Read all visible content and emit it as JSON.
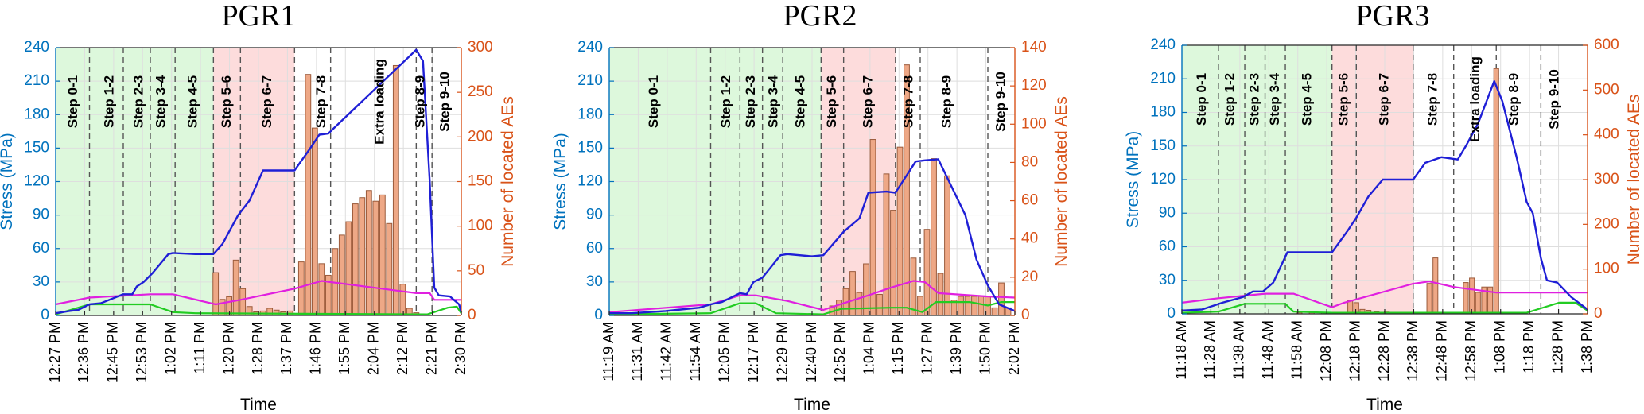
{
  "colors": {
    "stress": "#1F1FD6",
    "magenta": "#E020E0",
    "green": "#22CC22",
    "bars_fill": "#EEA886",
    "bars_edge": "#9A5A3A",
    "axis_left": "#0072BD",
    "axis_right": "#D95319",
    "shade_green": "#DDF8DC",
    "shade_red": "#FDDCDC"
  },
  "chart_data": [
    {
      "type": "bar",
      "title": "PGR1",
      "xlabel": "Time",
      "ylabel": "Stress (MPa)",
      "y2label": "Number of located AEs",
      "xlim": [
        0,
        18
      ],
      "ylim": [
        0,
        240
      ],
      "y2lim": [
        0,
        300
      ],
      "yticks": [
        0,
        30,
        60,
        90,
        120,
        150,
        180,
        210,
        240
      ],
      "y2ticks": [
        0,
        50,
        100,
        150,
        200,
        250,
        300
      ],
      "xticklabels": [
        "12:27 PM",
        "12:36 PM",
        "12:45 PM",
        "12:53 PM",
        "1:02 PM",
        "1:11 PM",
        "1:20 PM",
        "1:28 PM",
        "1:37 PM",
        "1:46 PM",
        "1:55 PM",
        "2:04 PM",
        "2:12 PM",
        "2:21 PM",
        "2:30 PM"
      ],
      "steps": [
        {
          "label": "Step 0-1",
          "x": 0.8
        },
        {
          "label": "Step 1-2",
          "x": 2.4
        },
        {
          "label": "Step 2-3",
          "x": 3.7
        },
        {
          "label": "Step 3-4",
          "x": 4.7
        },
        {
          "label": "Step 4-5",
          "x": 6.1
        },
        {
          "label": "Step 5-6",
          "x": 7.6
        },
        {
          "label": "Step 6-7",
          "x": 9.4
        },
        {
          "label": "Step 7-8",
          "x": 11.8
        },
        {
          "label": "Extra  loading",
          "x": 14.4
        },
        {
          "label": "Step 8-9",
          "x": 16.2
        },
        {
          "label": "Step 9-10",
          "x": 17.3
        }
      ],
      "step_boundaries": [
        1.5,
        3.0,
        4.2,
        5.3,
        7.0,
        8.2,
        10.6,
        12.2,
        16.0,
        16.7
      ],
      "green_shade": [
        0,
        7.0
      ],
      "red_shade": [
        7.0,
        10.6
      ],
      "stress": {
        "x": [
          0,
          0.6,
          1.0,
          1.5,
          2.0,
          3.0,
          3.4,
          3.6,
          3.9,
          4.3,
          5.0,
          5.2,
          6.2,
          7.0,
          7.4,
          8.1,
          8.6,
          9.2,
          10.6,
          11.3,
          11.7,
          12.1,
          12.3,
          16.0,
          16.3,
          16.6,
          16.8,
          17.0,
          17.5,
          17.9,
          18.0
        ],
        "y": [
          2,
          4,
          5,
          10,
          11,
          19,
          19,
          26,
          30,
          38,
          55,
          56,
          55,
          55,
          64,
          90,
          103,
          130,
          130,
          150,
          162,
          163,
          167,
          238,
          228,
          120,
          25,
          18,
          17,
          10,
          3
        ]
      },
      "magenta": {
        "x": [
          0,
          1.5,
          4.2,
          5.2,
          7.1,
          8.2,
          10.6,
          11.8,
          16.0,
          16.6,
          16.8,
          18.0
        ],
        "y": [
          10,
          16,
          19,
          19,
          10,
          14,
          24,
          31,
          20,
          20,
          14,
          14
        ]
      },
      "green_line": {
        "x": [
          0,
          1.5,
          4.2,
          5.2,
          6.2,
          16.5,
          17.4,
          17.8,
          18.0
        ],
        "y": [
          1,
          10,
          10,
          3,
          2,
          1,
          7,
          8,
          2
        ]
      },
      "bars": {
        "x": [
          7.1,
          7.4,
          7.7,
          8.0,
          8.3,
          8.6,
          8.9,
          9.2,
          9.5,
          9.8,
          10.1,
          10.4,
          10.9,
          11.2,
          11.5,
          11.8,
          12.1,
          12.4,
          12.7,
          13.0,
          13.3,
          13.6,
          13.9,
          14.2,
          14.5,
          14.8,
          15.1,
          15.4,
          15.7,
          16.0
        ],
        "values": [
          48,
          18,
          21,
          62,
          30,
          10,
          4,
          5,
          8,
          6,
          4,
          5,
          60,
          270,
          210,
          58,
          45,
          75,
          90,
          105,
          125,
          132,
          140,
          128,
          135,
          103,
          280,
          35,
          8,
          3
        ]
      }
    },
    {
      "type": "bar",
      "title": "PGR2",
      "xlabel": "Time",
      "ylabel": "Stress (MPa)",
      "y2label": "Number of located AEs",
      "xlim": [
        0,
        18
      ],
      "ylim": [
        0,
        240
      ],
      "y2lim": [
        0,
        140
      ],
      "yticks": [
        0,
        30,
        60,
        90,
        120,
        150,
        180,
        210,
        240
      ],
      "y2ticks": [
        0,
        20,
        40,
        60,
        80,
        100,
        120,
        140
      ],
      "xticklabels": [
        "11:19 AM",
        "11:31 AM",
        "11:42 AM",
        "11:54 AM",
        "12:05 PM",
        "12:17 PM",
        "12:29 PM",
        "12:40 PM",
        "12:52 PM",
        "1:04 PM",
        "1:15 PM",
        "1:27 PM",
        "1:39 PM",
        "1:50 PM",
        "2:02 PM"
      ],
      "steps": [
        {
          "label": "Step 0-1",
          "x": 2.0
        },
        {
          "label": "Step 1-2",
          "x": 5.2
        },
        {
          "label": "Step 2-3",
          "x": 6.3
        },
        {
          "label": "Step 3-4",
          "x": 7.3
        },
        {
          "label": "Step 4-5",
          "x": 8.5
        },
        {
          "label": "Step 5-6",
          "x": 9.9
        },
        {
          "label": "Step 6-7",
          "x": 11.5
        },
        {
          "label": "Step 7-8",
          "x": 13.3
        },
        {
          "label": "Step 8-9",
          "x": 15.0
        },
        {
          "label": "Step 9-10",
          "x": 17.4
        }
      ],
      "step_boundaries": [
        4.5,
        5.8,
        6.8,
        7.7,
        9.4,
        10.4,
        12.7,
        13.8,
        16.8
      ],
      "green_shade": [
        0,
        9.4
      ],
      "red_shade": [
        9.4,
        12.7
      ],
      "stress": {
        "x": [
          0,
          1.0,
          2.5,
          3.0,
          4.0,
          4.5,
          5.0,
          5.8,
          6.1,
          6.4,
          6.8,
          7.6,
          7.9,
          9.0,
          9.5,
          10.4,
          11.1,
          11.5,
          12.3,
          12.7,
          13.6,
          14.0,
          14.6,
          15.8,
          16.3,
          16.8,
          17.3,
          18.0
        ],
        "y": [
          2,
          2,
          4,
          5,
          7,
          10,
          12,
          20,
          19,
          30,
          34,
          54,
          55,
          53,
          54,
          75,
          87,
          110,
          111,
          110,
          138,
          139,
          140,
          90,
          50,
          27,
          10,
          4
        ]
      },
      "magenta": {
        "x": [
          0,
          4.5,
          5.8,
          6.5,
          7.9,
          9.5,
          10.4,
          11.5,
          12.5,
          13.5,
          14.0,
          14.6,
          16.8,
          18.0
        ],
        "y": [
          3,
          10,
          18,
          18,
          13,
          5,
          11,
          18,
          25,
          31,
          30,
          20,
          17,
          16
        ]
      },
      "green_line": {
        "x": [
          0,
          4.5,
          5.8,
          6.5,
          7.4,
          9.5,
          10.3,
          12.5,
          13.2,
          13.9,
          14.5,
          16.0,
          16.8,
          17.4,
          18.0
        ],
        "y": [
          1,
          2,
          11,
          11,
          2,
          1,
          6,
          7,
          7,
          3,
          12,
          12,
          9,
          12,
          12
        ]
      },
      "bars": {
        "x": [
          9.9,
          10.2,
          10.5,
          10.8,
          11.1,
          11.4,
          11.7,
          12.0,
          12.3,
          12.6,
          12.9,
          13.2,
          13.5,
          13.8,
          14.1,
          14.4,
          14.7,
          15.0,
          15.3,
          15.6,
          15.9,
          16.2,
          16.5,
          16.8,
          17.1,
          17.4,
          17.7
        ],
        "values": [
          5,
          8,
          14,
          23,
          12,
          27,
          92,
          11,
          74,
          55,
          88,
          131,
          30,
          10,
          45,
          82,
          22,
          73,
          8,
          10,
          10,
          10,
          10,
          10,
          4,
          17,
          4
        ]
      }
    },
    {
      "type": "bar",
      "title": "PGR3",
      "xlabel": "Time",
      "ylabel": "Stress (MPa)",
      "y2label": "Number of located AEs",
      "xlim": [
        0,
        20
      ],
      "ylim": [
        0,
        240
      ],
      "y2lim": [
        0,
        600
      ],
      "yticks": [
        0,
        30,
        60,
        90,
        120,
        150,
        180,
        210,
        240
      ],
      "y2ticks": [
        0,
        100,
        200,
        300,
        400,
        500,
        600
      ],
      "xticklabels": [
        "11:18 AM",
        "11:28 AM",
        "11:38 AM",
        "11:48 AM",
        "11:58 AM",
        "12:08 PM",
        "12:18 PM",
        "12:28 PM",
        "12:38 PM",
        "12:48 PM",
        "12:58 PM",
        "1:08 PM",
        "1:18 PM",
        "1:28 PM",
        "1:38 PM"
      ],
      "steps": [
        {
          "label": "Step 0-1",
          "x": 1.0
        },
        {
          "label": "Step 1-2",
          "x": 2.4
        },
        {
          "label": "Step 2-3",
          "x": 3.6
        },
        {
          "label": "Step 3-4",
          "x": 4.6
        },
        {
          "label": "Step 4-5",
          "x": 6.2
        },
        {
          "label": "Step 5-6",
          "x": 8.0
        },
        {
          "label": "Step 6-7",
          "x": 10.0
        },
        {
          "label": "Step 7-8",
          "x": 12.4
        },
        {
          "label": "Extra  loading",
          "x": 14.5
        },
        {
          "label": "Step 8-9",
          "x": 16.4
        },
        {
          "label": "Step 9-10",
          "x": 18.4
        }
      ],
      "step_boundaries": [
        1.8,
        3.1,
        4.1,
        5.1,
        7.4,
        8.6,
        11.4,
        13.4,
        15.5,
        17.7
      ],
      "green_shade": [
        0,
        7.4
      ],
      "red_shade": [
        7.4,
        11.4
      ],
      "stress": {
        "x": [
          0,
          1.0,
          2.0,
          3.0,
          3.5,
          4.0,
          4.5,
          5.2,
          6.5,
          7.4,
          8.2,
          8.6,
          9.2,
          9.9,
          11.0,
          11.4,
          12.0,
          12.8,
          13.6,
          14.0,
          14.6,
          15.4,
          15.8,
          16.5,
          17.0,
          17.3,
          17.7,
          18.0,
          18.5,
          19.2,
          20.0
        ],
        "y": [
          3,
          4,
          10,
          15,
          20,
          20,
          28,
          55,
          55,
          55,
          75,
          86,
          105,
          120,
          120,
          120,
          135,
          140,
          138,
          150,
          170,
          208,
          190,
          140,
          100,
          90,
          50,
          30,
          28,
          15,
          4
        ]
      },
      "magenta": {
        "x": [
          0,
          1.8,
          4.1,
          5.5,
          7.4,
          8.0,
          11.4,
          12.2,
          13.4,
          15.5,
          16.0,
          17.7,
          20.0
        ],
        "y": [
          10,
          14,
          18,
          18,
          6,
          10,
          27,
          29,
          24,
          19,
          19,
          19,
          19
        ]
      },
      "green_line": {
        "x": [
          0,
          1.8,
          3.1,
          5.1,
          5.5,
          7.4,
          17.0,
          17.7,
          18.6,
          19.4,
          20.0
        ],
        "y": [
          1,
          2,
          9,
          9,
          2,
          1,
          1,
          5,
          10,
          10,
          3
        ]
      },
      "bars": {
        "x": [
          5.8,
          6.4,
          7.0,
          8.3,
          8.6,
          8.9,
          9.2,
          9.6,
          10.1,
          10.6,
          12.2,
          12.5,
          12.8,
          13.6,
          14.0,
          14.3,
          14.6,
          14.9,
          15.2,
          15.5,
          15.8,
          16.2
        ],
        "values": [
          3,
          3,
          3,
          30,
          25,
          10,
          8,
          5,
          6,
          3,
          68,
          125,
          3,
          3,
          70,
          80,
          48,
          60,
          60,
          548,
          3,
          3
        ]
      }
    }
  ]
}
